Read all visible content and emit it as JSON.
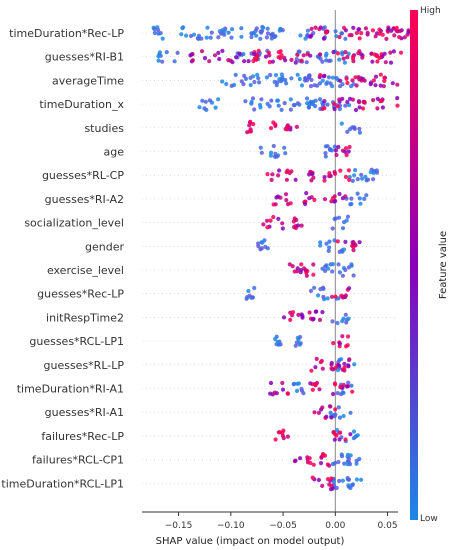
{
  "chart_data": {
    "type": "scatter",
    "subtype": "shap-beeswarm",
    "xlabel": "SHAP value (impact on model output)",
    "xlim": [
      -0.185,
      0.06
    ],
    "xticks": [
      -0.15,
      -0.1,
      -0.05,
      0.0,
      0.05
    ],
    "xtick_labels": [
      "−0.15",
      "−0.10",
      "−0.05",
      "0.00",
      "0.05"
    ],
    "colorbar": {
      "label": "Feature value",
      "high_label": "High",
      "low_label": "Low",
      "high_color": "#ff0052",
      "low_color": "#1e88e5"
    },
    "features": [
      {
        "name": "timeDuration*Rec-LP",
        "low": [
          [
            -0.17,
            0.005
          ],
          [
            -0.14,
            0.01
          ],
          [
            -0.12,
            0.015
          ],
          [
            -0.09,
            0.02
          ],
          [
            -0.07,
            0.02
          ],
          [
            -0.05,
            0.025
          ],
          [
            -0.01,
            0.02
          ]
        ],
        "high": [
          [
            0.015,
            0.04
          ],
          [
            0.03,
            0.045
          ],
          [
            0.045,
            0.03
          ]
        ]
      },
      {
        "name": "guesses*RI-B1",
        "low": [
          [
            -0.16,
            0.01
          ],
          [
            -0.08,
            0.015
          ],
          [
            -0.02,
            0.02
          ],
          [
            0.0,
            0.02
          ]
        ],
        "high": [
          [
            -0.12,
            0.02
          ],
          [
            -0.09,
            0.02
          ],
          [
            -0.06,
            0.02
          ],
          [
            -0.04,
            0.02
          ],
          [
            0.015,
            0.035
          ],
          [
            0.04,
            0.03
          ]
        ]
      },
      {
        "name": "averageTime",
        "low": [
          [
            -0.09,
            0.02
          ],
          [
            -0.07,
            0.02
          ],
          [
            -0.04,
            0.02
          ],
          [
            -0.02,
            0.02
          ],
          [
            0.0,
            0.02
          ]
        ],
        "high": [
          [
            0.02,
            0.035
          ],
          [
            0.04,
            0.02
          ]
        ]
      },
      {
        "name": "timeDuration_x",
        "low": [
          [
            -0.12,
            0.01
          ],
          [
            -0.07,
            0.02
          ],
          [
            -0.04,
            0.02
          ],
          [
            -0.02,
            0.02
          ],
          [
            0.0,
            0.02
          ]
        ],
        "high": [
          [
            0.02,
            0.035
          ],
          [
            0.04,
            0.02
          ]
        ]
      },
      {
        "name": "studies",
        "low": [
          [
            0.015,
            0.01
          ]
        ],
        "high": [
          [
            -0.08,
            0.005
          ],
          [
            -0.05,
            0.015
          ]
        ]
      },
      {
        "name": "age",
        "low": [
          [
            -0.06,
            0.015
          ],
          [
            -0.005,
            0.005
          ]
        ],
        "high": [
          [
            0.01,
            0.01
          ]
        ]
      },
      {
        "name": "guesses*RL-CP",
        "low": [
          [
            0.02,
            0.01
          ],
          [
            0.035,
            0.005
          ]
        ],
        "high": [
          [
            -0.05,
            0.015
          ],
          [
            -0.025,
            0.005
          ],
          [
            0.0,
            0.015
          ]
        ]
      },
      {
        "name": "guesses*RI-A2",
        "low": [
          [
            0.02,
            0.01
          ]
        ],
        "high": [
          [
            -0.05,
            0.01
          ],
          [
            -0.025,
            0.005
          ],
          [
            0.0,
            0.01
          ]
        ]
      },
      {
        "name": "socialization_level",
        "low": [
          [
            0.005,
            0.008
          ]
        ],
        "high": [
          [
            -0.06,
            0.01
          ],
          [
            -0.035,
            0.005
          ]
        ]
      },
      {
        "name": "gender",
        "low": [
          [
            -0.07,
            0.01
          ],
          [
            -0.005,
            0.015
          ]
        ],
        "high": [
          [
            0.01,
            0.015
          ]
        ]
      },
      {
        "name": "exercise_level",
        "low": [
          [
            0.01,
            0.01
          ],
          [
            -0.01,
            0.008
          ]
        ],
        "high": [
          [
            -0.04,
            0.008
          ],
          [
            -0.025,
            0.005
          ]
        ]
      },
      {
        "name": "guesses*Rec-LP",
        "low": [
          [
            -0.08,
            0.005
          ],
          [
            -0.01,
            0.015
          ]
        ],
        "high": [
          [
            0.005,
            0.01
          ]
        ]
      },
      {
        "name": "initRespTime2",
        "low": [
          [
            0.005,
            0.008
          ]
        ],
        "high": [
          [
            -0.04,
            0.01
          ],
          [
            -0.02,
            0.008
          ]
        ]
      },
      {
        "name": "guesses*RCL-LP1",
        "low": [
          [
            -0.055,
            0.003
          ],
          [
            -0.035,
            0.003
          ]
        ],
        "high": [
          [
            0.005,
            0.008
          ]
        ]
      },
      {
        "name": "guesses*RL-LP",
        "low": [
          [
            0.01,
            0.01
          ]
        ],
        "high": [
          [
            -0.01,
            0.015
          ],
          [
            0.005,
            0.01
          ]
        ]
      },
      {
        "name": "timeDuration*RI-A1",
        "low": [
          [
            -0.035,
            0.005
          ],
          [
            0.01,
            0.008
          ]
        ],
        "high": [
          [
            -0.055,
            0.01
          ],
          [
            -0.02,
            0.005
          ],
          [
            0.005,
            0.012
          ]
        ]
      },
      {
        "name": "guesses*RI-A1",
        "low": [
          [
            0.005,
            0.012
          ]
        ],
        "high": [
          [
            -0.01,
            0.01
          ]
        ]
      },
      {
        "name": "failures*Rec-LP",
        "low": [
          [
            0.01,
            0.012
          ]
        ],
        "high": [
          [
            -0.05,
            0.008
          ],
          [
            0.005,
            0.01
          ]
        ]
      },
      {
        "name": "failures*RCL-CP1",
        "low": [
          [
            0.005,
            0.01
          ],
          [
            0.015,
            0.008
          ]
        ],
        "high": [
          [
            -0.03,
            0.01
          ],
          [
            -0.01,
            0.005
          ]
        ]
      },
      {
        "name": "timeDuration*RCL-LP1",
        "low": [
          [
            0.005,
            0.012
          ],
          [
            0.02,
            0.008
          ]
        ],
        "high": [
          [
            -0.01,
            0.015
          ]
        ]
      }
    ]
  }
}
